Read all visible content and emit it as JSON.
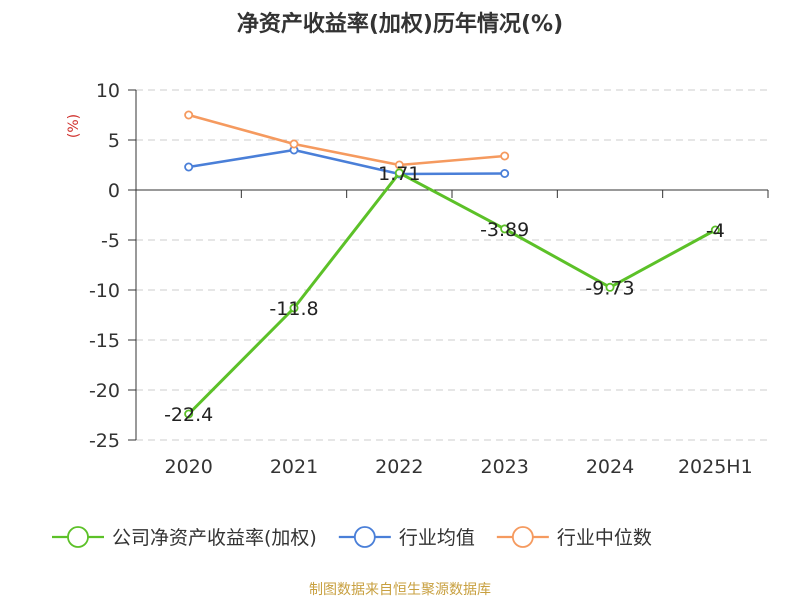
{
  "chart_data": {
    "type": "line",
    "title": "净资产收益率(加权)历年情况(%)",
    "ylabel": "(%)",
    "categories": [
      "2020",
      "2021",
      "2022",
      "2023",
      "2024",
      "2025H1"
    ],
    "ylim": [
      -25,
      10
    ],
    "yticks": [
      10,
      5,
      0,
      -5,
      -10,
      -15,
      -20,
      -25
    ],
    "grid": true,
    "legend_position": "bottom",
    "series": [
      {
        "name": "公司净资产收益率(加权)",
        "color": "#5cc128",
        "values": [
          -22.4,
          -11.8,
          1.71,
          -3.89,
          -9.73,
          -4
        ],
        "labels": [
          "-22.4",
          "-11.8",
          "1.71",
          "-3.89",
          "-9.73",
          "-4"
        ]
      },
      {
        "name": "行业均值",
        "color": "#4a7fd8",
        "values": [
          2.3,
          4.0,
          1.6,
          1.65,
          null,
          null
        ]
      },
      {
        "name": "行业中位数",
        "color": "#f59a5f",
        "values": [
          7.5,
          4.6,
          2.5,
          3.4,
          null,
          null
        ]
      }
    ]
  },
  "footer": {
    "source": "制图数据来自恒生聚源数据库",
    "color": "#c8a040"
  },
  "colors": {
    "ylabel": "#d0312d",
    "axis": "#333333",
    "grid": "#cccccc"
  }
}
